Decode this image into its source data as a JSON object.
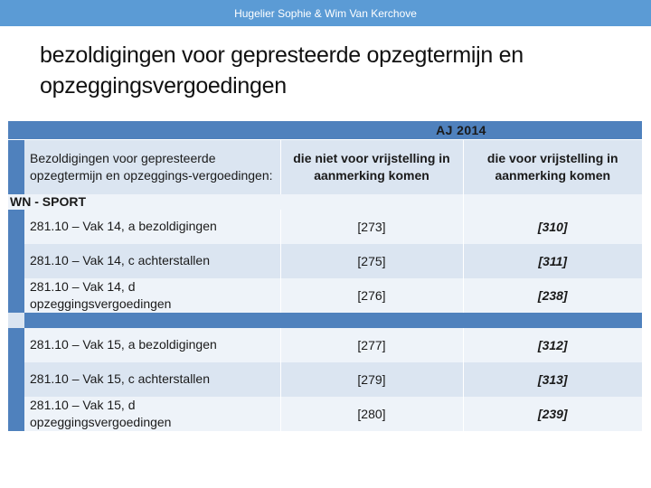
{
  "header": {
    "author": "Hugelier Sophie & Wim Van Kerchove"
  },
  "title": "bezoldigingen voor gepresteerde opzegtermijn en opzeggingsvergoedingen",
  "table": {
    "aj_label": "AJ 2014",
    "row_label_header": "Bezoldigingen voor gepresteerde opzegtermijn en opzeggings-vergoedingen:",
    "col1_header": "die niet voor vrijstelling in aanmerking komen",
    "col2_header": "die voor vrijstelling in aanmerking komen",
    "section_label": "WN - SPORT",
    "group1": [
      {
        "code": "281.10 – Vak 14, a bezoldigingen",
        "col1": "[273]",
        "col2": "[310]"
      },
      {
        "code": "281.10 – Vak 14, c achterstallen",
        "col1": "[275]",
        "col2": "[311]"
      },
      {
        "code": "281.10 – Vak 14, d opzeggingsvergoedingen",
        "col1": "[276]",
        "col2": "[238]"
      }
    ],
    "group2": [
      {
        "code": "281.10 – Vak 15, a bezoldigingen",
        "col1": "[277]",
        "col2": "[312]"
      },
      {
        "code": "281.10 – Vak 15, c achterstallen",
        "col1": "[279]",
        "col2": "[313]"
      },
      {
        "code": "281.10 – Vak 15, d opzeggingsvergoedingen",
        "col1": "[280]",
        "col2": "[239]"
      }
    ]
  }
}
